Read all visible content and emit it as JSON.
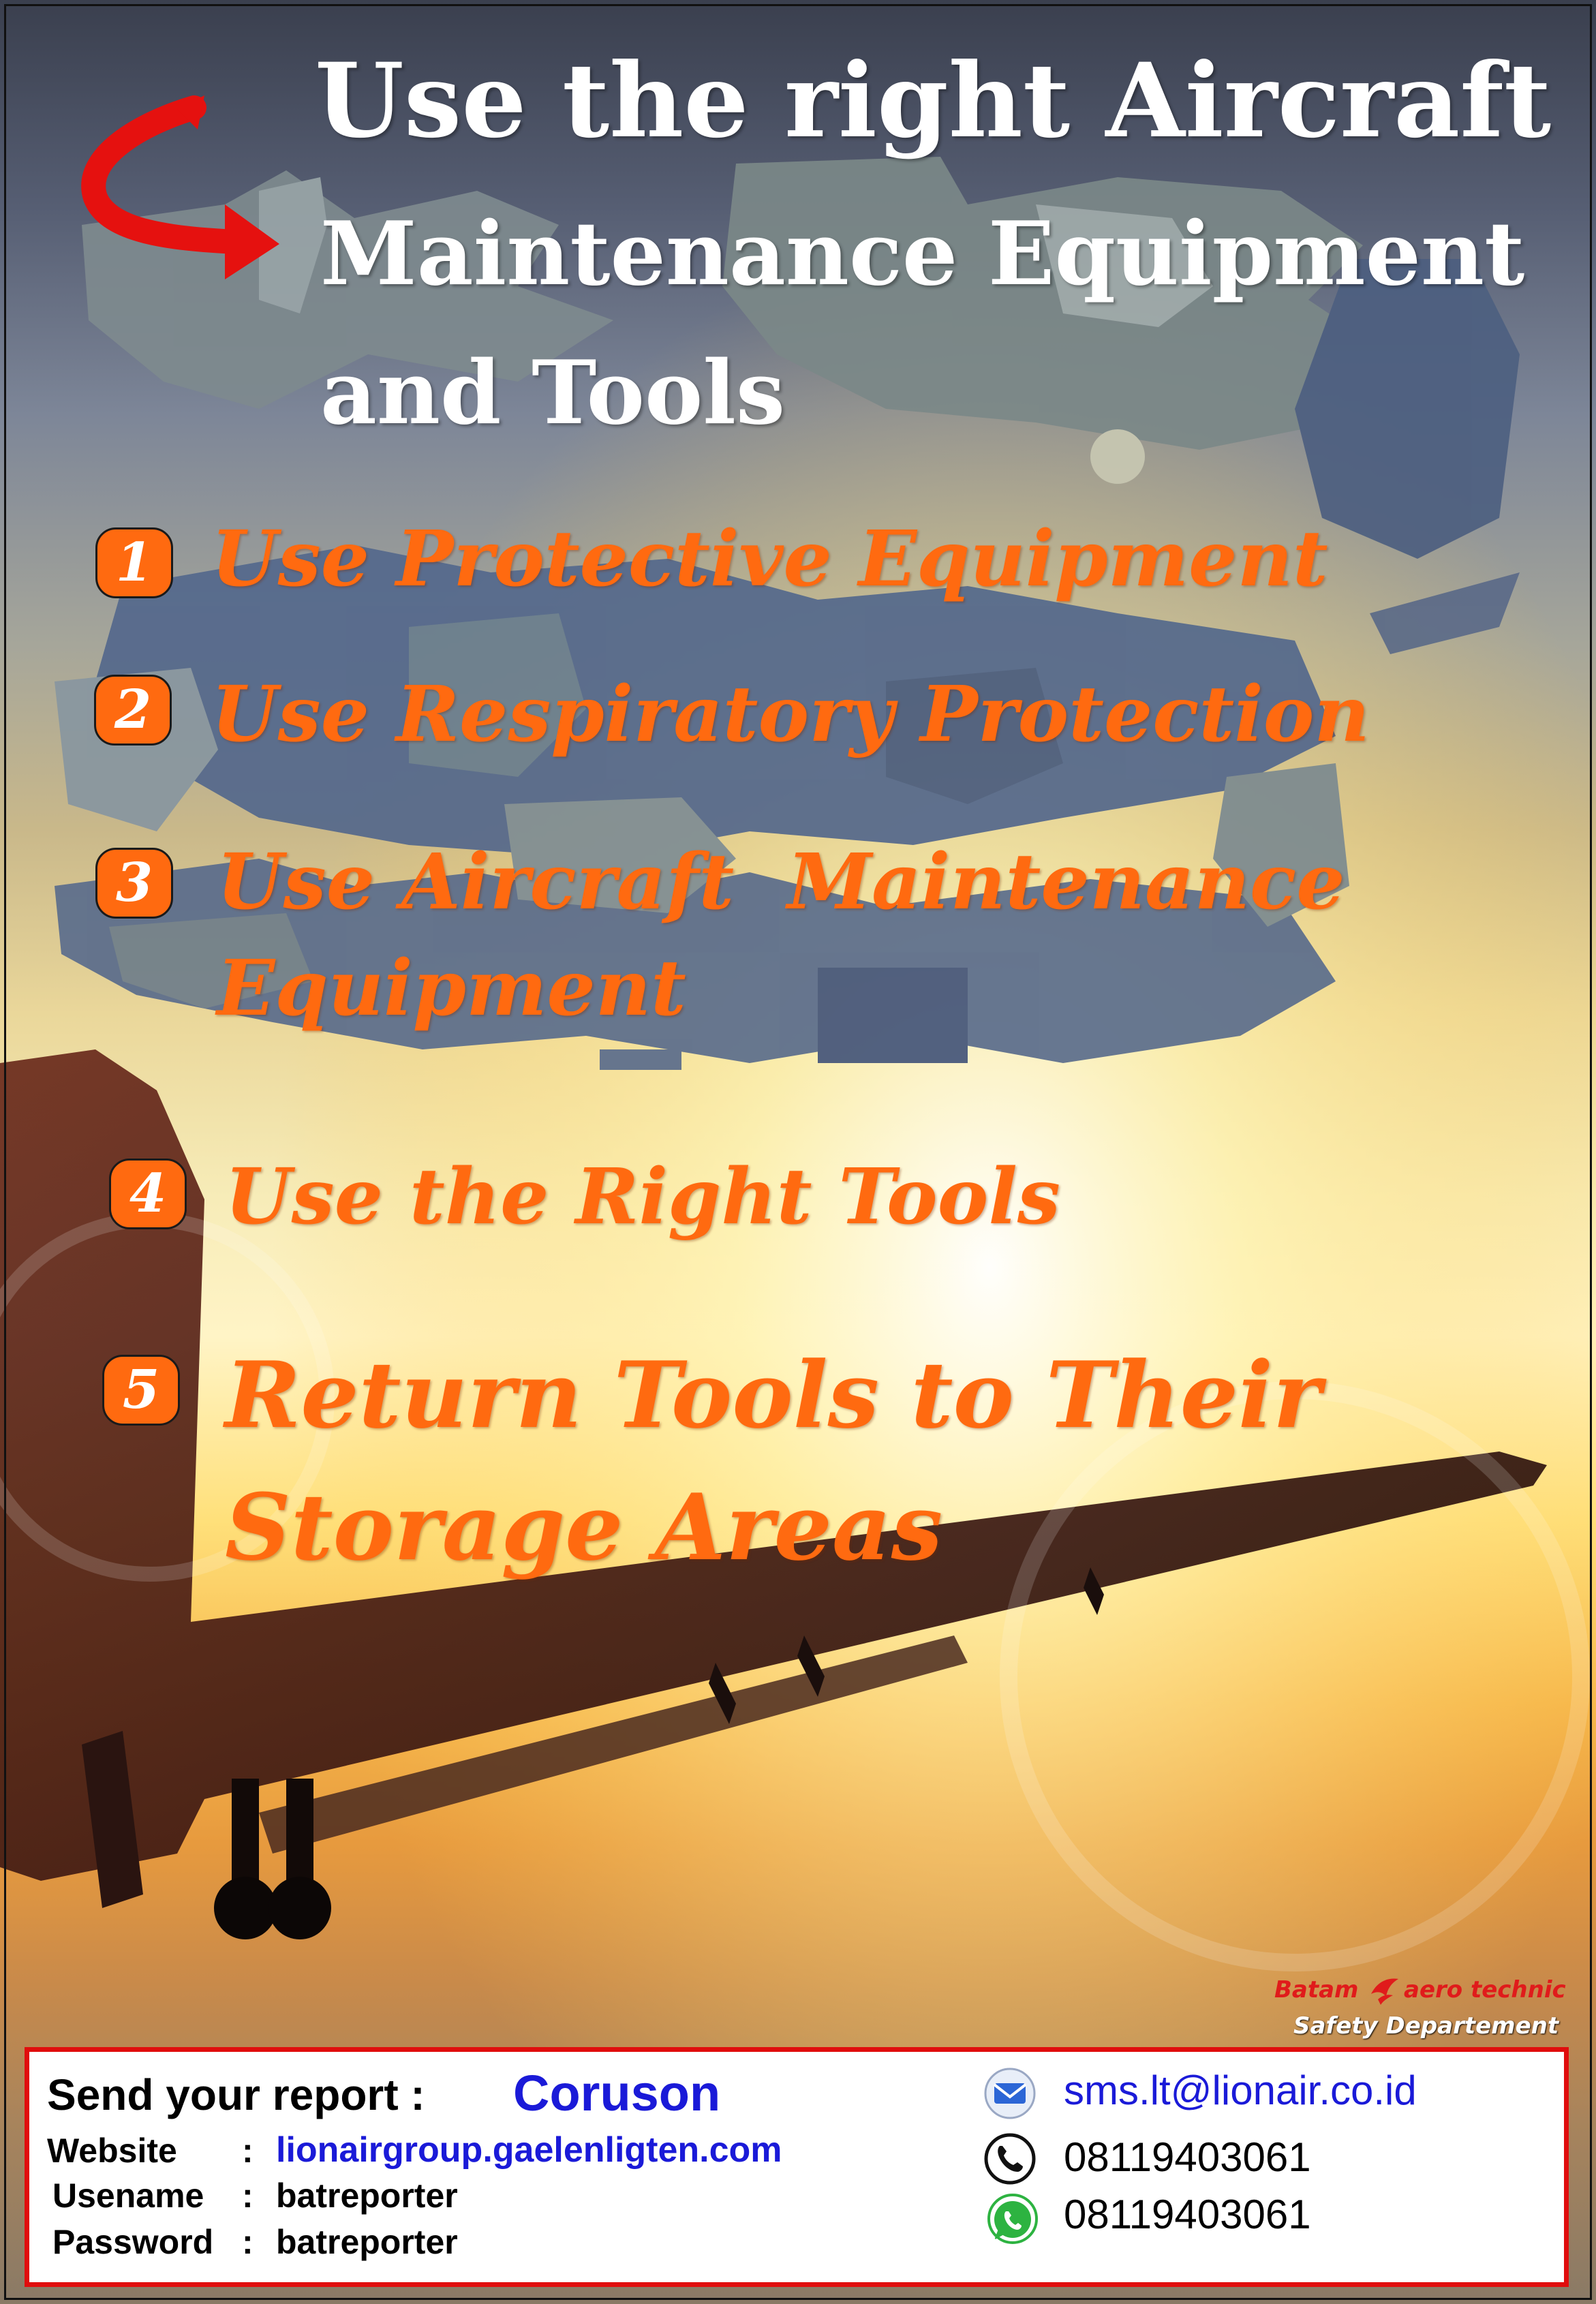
{
  "title": {
    "line1": "Use the right Aircraft",
    "line2": "Maintenance Equipment",
    "line3": "and Tools"
  },
  "items": [
    {
      "number": "1",
      "text": "Use Protective Equipment"
    },
    {
      "number": "2",
      "text": "Use Respiratory Protection"
    },
    {
      "number": "3",
      "line1": "Use Aircraft  Maintenance",
      "line2": "Equipment"
    },
    {
      "number": "4",
      "text": "Use the Right Tools"
    },
    {
      "number": "5",
      "line1": "Return Tools to Their",
      "line2": "Storage Areas"
    }
  ],
  "branding": {
    "company_left": "Batam",
    "company_right": "aero technic",
    "department": "Safety Departement"
  },
  "report": {
    "heading": "Send your report :",
    "system": "Coruson",
    "website_label": "Website",
    "website_sep": ":",
    "website_value": "lionairgroup.gaelenligten.com",
    "username_label": "Usename",
    "username_sep": ":",
    "username_value": "batreporter",
    "password_label": "Password",
    "password_sep": ":",
    "password_value": "batreporter"
  },
  "contacts": {
    "email": "sms.lt@lionair.co.id",
    "phone": "08119403061",
    "whatsapp": "08119403061"
  },
  "colors": {
    "accent_orange": "#ff6a10",
    "border_red": "#e00d0d",
    "link_blue": "#1a1ad8"
  },
  "icons": [
    "curved-arrow-icon",
    "email-icon",
    "phone-icon",
    "whatsapp-icon",
    "bird-logo-icon"
  ]
}
